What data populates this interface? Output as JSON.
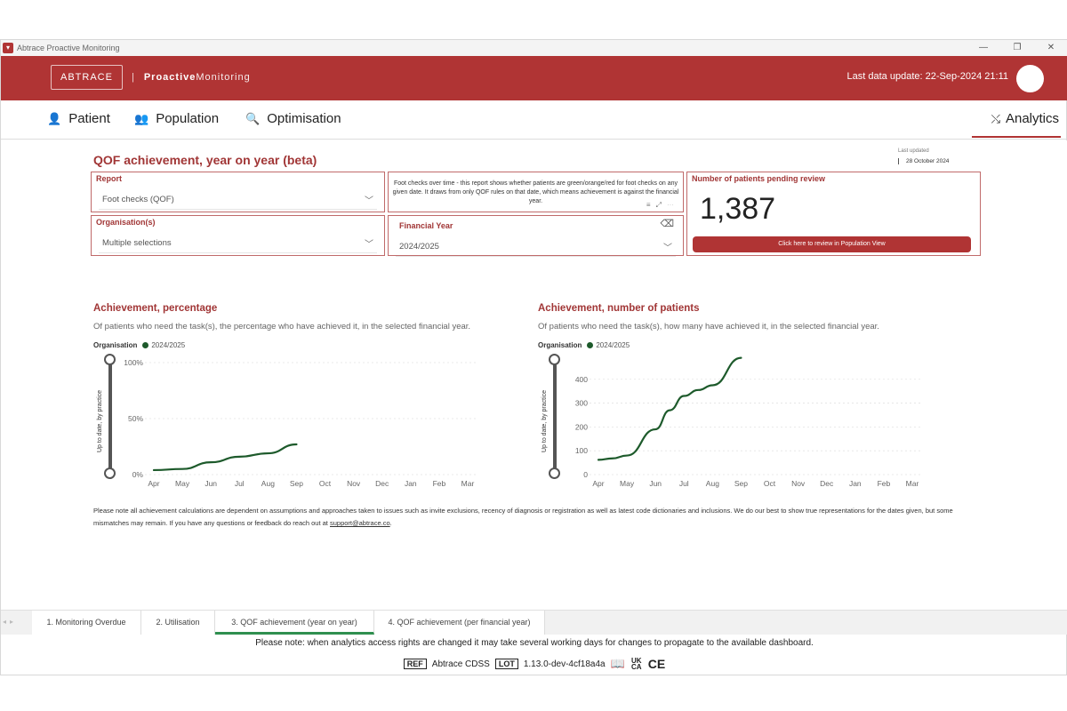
{
  "window": {
    "title": "Abtrace Proactive Monitoring",
    "controls": [
      "—",
      "❐",
      "✕"
    ]
  },
  "header": {
    "logo_text": "ABTRACE",
    "separator": "|",
    "product_bold": "Proactive",
    "product_rest": "Monitoring",
    "last_update": "Last data update: 22-Sep-2024 21:11"
  },
  "nav": {
    "items": [
      {
        "label": "Patient",
        "icon": "person-icon"
      },
      {
        "label": "Population",
        "icon": "group-icon"
      },
      {
        "label": "Optimisation",
        "icon": "user-search-icon"
      }
    ],
    "analytics": "Analytics"
  },
  "dashboard": {
    "title": "QOF achievement, year on year (beta)",
    "last_updated_label": "Last updated",
    "last_updated_date": "28 October 2024",
    "report": {
      "label": "Report",
      "value": "Foot checks (QOF)"
    },
    "organisation": {
      "label": "Organisation(s)",
      "value": "Multiple selections"
    },
    "description": "Foot checks over time - this report shows whether patients are green/orange/red for foot checks on any given date. It draws from only QOF rules on that date, which means achievement is against the financial year.",
    "financial_year": {
      "label": "Financial Year",
      "value": "2024/2025"
    },
    "pending": {
      "label": "Number of patients pending review",
      "value": "1,387",
      "button": "Click here to review in Population View"
    },
    "chart1": {
      "title": "Achievement, percentage",
      "subtitle": "Of patients who need the task(s), the percentage who have achieved it, in the selected financial year.",
      "legend_title": "Organisation",
      "slider_label": "Up to date, by practice"
    },
    "chart2": {
      "title": "Achievement, number of patients",
      "subtitle": "Of patients who need the task(s), how many have achieved it, in the selected financial year.",
      "legend_title": "Organisation",
      "slider_label": "Up to date, by practice"
    },
    "note_text": "Please note all achievement calculations are dependent on assumptions and approaches taken to issues such as invite exclusions, recency of diagnosis or registration as well as latest code dictionaries and inclusions. We do our best to show true representations for the dates given, but some mismatches may remain. If you have any questions or feedback do reach out at",
    "note_email": "support@abtrace.co",
    "note_end": "."
  },
  "chart_data": [
    {
      "type": "line",
      "title": "Achievement, percentage",
      "categories": [
        "Apr",
        "May",
        "Jun",
        "Jul",
        "Aug",
        "Sep",
        "Oct",
        "Nov",
        "Dec",
        "Jan",
        "Feb",
        "Mar"
      ],
      "yticks": [
        "0%",
        "50%",
        "100%"
      ],
      "ylim": [
        0,
        100
      ],
      "series": [
        {
          "name": "2024/2025",
          "color": "#1d5a2b",
          "points": [
            [
              0,
              4
            ],
            [
              1,
              5
            ],
            [
              2,
              11
            ],
            [
              3,
              16
            ],
            [
              4,
              19
            ],
            [
              5,
              27
            ]
          ]
        }
      ],
      "legend": "top-left"
    },
    {
      "type": "line",
      "title": "Achievement, number of patients",
      "categories": [
        "Apr",
        "May",
        "Jun",
        "Jul",
        "Aug",
        "Sep",
        "Oct",
        "Nov",
        "Dec",
        "Jan",
        "Feb",
        "Mar"
      ],
      "yticks": [
        "0",
        "100",
        "200",
        "300",
        "400"
      ],
      "ylim": [
        0,
        470
      ],
      "series": [
        {
          "name": "2024/2025",
          "color": "#1d5a2b",
          "points": [
            [
              0,
              62
            ],
            [
              0.5,
              68
            ],
            [
              1,
              80
            ],
            [
              2,
              190
            ],
            [
              2.5,
              270
            ],
            [
              3,
              330
            ],
            [
              3.5,
              355
            ],
            [
              4,
              375
            ],
            [
              5,
              490
            ]
          ]
        }
      ],
      "legend": "top-left"
    }
  ],
  "tabs": [
    "1. Monitoring Overdue",
    "2. Utilisation",
    "3. QOF achievement (year on year)",
    "4. QOF achievement (per financial year)"
  ],
  "footer": {
    "notice": "Please note: when analytics access rights are changed it may take several working days for changes to propagate to the available dashboard.",
    "ref_box": "REF",
    "ref_text": "Abtrace CDSS",
    "lot_box": "LOT",
    "lot_text": "1.13.0-dev-4cf18a4a",
    "ukca": "UK CA",
    "ce": "CE"
  }
}
